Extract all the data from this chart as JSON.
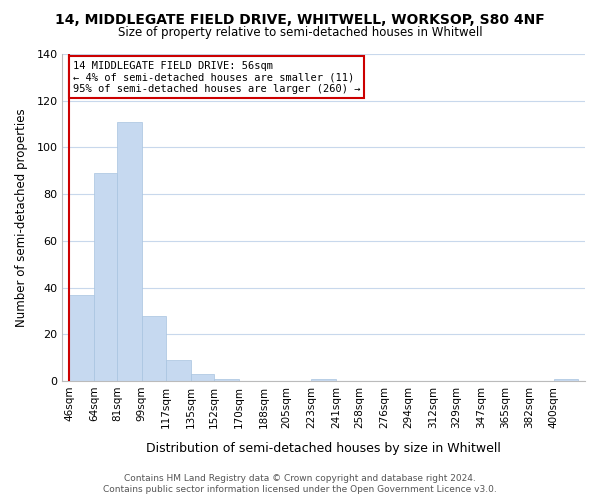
{
  "title": "14, MIDDLEGATE FIELD DRIVE, WHITWELL, WORKSOP, S80 4NF",
  "subtitle": "Size of property relative to semi-detached houses in Whitwell",
  "xlabel": "Distribution of semi-detached houses by size in Whitwell",
  "ylabel": "Number of semi-detached properties",
  "bar_labels": [
    "46sqm",
    "64sqm",
    "81sqm",
    "99sqm",
    "117sqm",
    "135sqm",
    "152sqm",
    "170sqm",
    "188sqm",
    "205sqm",
    "223sqm",
    "241sqm",
    "258sqm",
    "276sqm",
    "294sqm",
    "312sqm",
    "329sqm",
    "347sqm",
    "365sqm",
    "382sqm",
    "400sqm"
  ],
  "bar_values": [
    37,
    89,
    111,
    28,
    9,
    3,
    1,
    0,
    0,
    0,
    1,
    0,
    0,
    0,
    0,
    0,
    0,
    0,
    0,
    0,
    1
  ],
  "bar_color": "#c6d9f0",
  "bar_edge_color": "#a8c4e0",
  "highlight_line_color": "#cc0000",
  "property_sqm": 56,
  "annotation_title": "14 MIDDLEGATE FIELD DRIVE: 56sqm",
  "annotation_line1": "← 4% of semi-detached houses are smaller (11)",
  "annotation_line2": "95% of semi-detached houses are larger (260) →",
  "annotation_box_color": "#ffffff",
  "annotation_box_edge": "#cc0000",
  "ylim": [
    0,
    140
  ],
  "yticks": [
    0,
    20,
    40,
    60,
    80,
    100,
    120,
    140
  ],
  "footer_line1": "Contains HM Land Registry data © Crown copyright and database right 2024.",
  "footer_line2": "Contains public sector information licensed under the Open Government Licence v3.0.",
  "background_color": "#ffffff",
  "grid_color": "#c8d8ec",
  "bin_left_edges": [
    46,
    64,
    81,
    99,
    117,
    135,
    152,
    170,
    188,
    205,
    223,
    241,
    258,
    276,
    294,
    312,
    329,
    347,
    365,
    382,
    400
  ],
  "bin_widths": [
    18,
    17,
    18,
    18,
    18,
    17,
    18,
    18,
    17,
    18,
    18,
    17,
    18,
    18,
    18,
    17,
    18,
    18,
    17,
    18,
    18
  ]
}
